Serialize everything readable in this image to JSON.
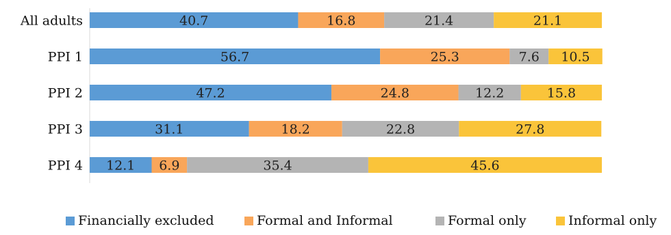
{
  "chart_data": {
    "type": "bar",
    "orientation": "horizontal",
    "stacked": true,
    "title": "",
    "xlabel": "",
    "ylabel": "",
    "xlim": [
      0,
      100
    ],
    "grid": false,
    "legend_position": "bottom",
    "categories": [
      "All adults",
      "PPI 1",
      "PPI 2",
      "PPI 3",
      "PPI 4"
    ],
    "series": [
      {
        "name": "Financially excluded",
        "color": "#5b9bd5",
        "values": [
          40.7,
          56.7,
          47.2,
          31.1,
          12.1
        ]
      },
      {
        "name": "Formal and Informal",
        "color": "#f9a65a",
        "values": [
          16.8,
          25.3,
          24.8,
          18.2,
          6.9
        ]
      },
      {
        "name": "Formal only",
        "color": "#b4b4b4",
        "values": [
          21.4,
          7.6,
          12.2,
          22.8,
          35.4
        ]
      },
      {
        "name": "Informal only",
        "color": "#fac43a",
        "values": [
          21.1,
          10.5,
          15.8,
          27.8,
          45.6
        ]
      }
    ]
  }
}
